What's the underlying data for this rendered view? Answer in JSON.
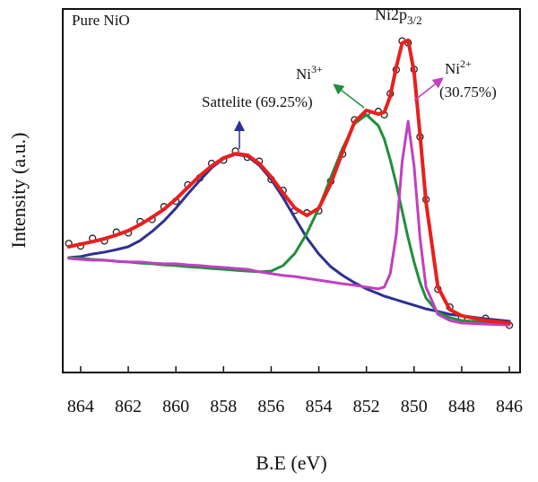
{
  "chart_data": {
    "type": "line",
    "x_label": "B.E (eV)",
    "y_label": "Intensity (a.u.)",
    "annotations": {
      "sample": "Pure NiO",
      "main_peak": {
        "text": "Ni2p",
        "sub": "3/2"
      },
      "ni3": {
        "text": "Ni",
        "sup": "3+"
      },
      "satellite": "Sattelite (69.25%)",
      "ni2": {
        "text": "Ni",
        "sup": "2+"
      },
      "ni2_share": "(30.75%)"
    },
    "x": [
      864.5,
      864,
      863.5,
      863,
      862.5,
      862,
      861.5,
      861,
      860.5,
      860,
      859.5,
      859,
      858.5,
      858,
      857.5,
      857,
      856.5,
      856,
      855.5,
      855,
      854.5,
      854,
      853.5,
      853,
      852.5,
      852,
      851.5,
      851.25,
      851,
      850.75,
      850.5,
      850.25,
      850,
      849.75,
      849.5,
      849,
      848.5,
      848,
      847,
      846
    ],
    "xlim": [
      864.75,
      845.55
    ],
    "xticks": [
      864,
      862,
      860,
      858,
      856,
      854,
      852,
      850,
      848,
      846
    ],
    "ylim": [
      0,
      100
    ],
    "series": [
      {
        "style": "markers",
        "color": "#222222",
        "values": [
          35.5,
          34.8,
          36.9,
          36.2,
          38.6,
          38.4,
          41.5,
          42.1,
          45.6,
          47.1,
          51.6,
          53.5,
          57.5,
          58.4,
          60.9,
          59.2,
          58.1,
          53.1,
          50.1,
          44.6,
          43.9,
          44.5,
          52.6,
          60.1,
          69.5,
          71.4,
          71.8,
          70.9,
          76.7,
          83.3,
          91.2,
          90.7,
          83.4,
          64.8,
          47.6,
          22.9,
          18.0,
          15.0,
          14.9,
          13.0
        ]
      },
      {
        "style": "line",
        "color": "#2e3192",
        "values": [
          31.6,
          31.9,
          32.6,
          33.1,
          33.8,
          34.6,
          36.3,
          38.8,
          41.7,
          45.2,
          49.1,
          52.8,
          56.3,
          58.8,
          60.0,
          59.5,
          57.0,
          53.1,
          48.1,
          42.5,
          37.0,
          32.6,
          29.1,
          26.7,
          24.7,
          23.0,
          21.7,
          21.0,
          20.5,
          20.0,
          19.5,
          19.0,
          18.5,
          18.0,
          17.5,
          16.8,
          16.0,
          15.6,
          14.8,
          14.1
        ]
      },
      {
        "style": "line",
        "color": "#1f8f3a",
        "values": [
          31.6,
          31.4,
          31.1,
          30.9,
          30.6,
          30.4,
          30.1,
          29.9,
          29.6,
          29.4,
          29.1,
          28.9,
          28.6,
          28.4,
          28.1,
          27.9,
          27.7,
          27.9,
          29.4,
          32.8,
          38.3,
          45.2,
          53.6,
          61.7,
          68.4,
          70.9,
          67.9,
          64.2,
          58.5,
          51.9,
          44.4,
          37.0,
          30.4,
          24.7,
          20.5,
          16.5,
          15.1,
          14.3,
          13.8,
          13.6
        ]
      },
      {
        "style": "line",
        "color": "#c040c0",
        "values": [
          31.4,
          31.1,
          30.9,
          30.9,
          30.6,
          30.4,
          30.4,
          30.1,
          29.9,
          29.9,
          29.6,
          29.4,
          29.1,
          28.9,
          28.6,
          28.4,
          27.7,
          27.2,
          26.7,
          26.4,
          25.9,
          25.4,
          24.9,
          24.4,
          24.0,
          23.5,
          23.0,
          23.5,
          27.2,
          37.8,
          58.0,
          69.1,
          56.8,
          37.0,
          23.5,
          16.0,
          14.3,
          13.6,
          13.3,
          13.1
        ]
      },
      {
        "style": "line",
        "color": "#e8201e",
        "values": [
          34.6,
          35.3,
          36.0,
          36.8,
          37.8,
          39.0,
          40.7,
          42.7,
          44.9,
          47.7,
          50.9,
          54.1,
          56.8,
          59.0,
          60.2,
          59.8,
          57.5,
          53.8,
          49.4,
          45.2,
          43.2,
          45.2,
          51.9,
          60.7,
          68.9,
          72.1,
          71.1,
          71.6,
          76.0,
          84.0,
          90.6,
          91.4,
          82.7,
          65.4,
          46.9,
          23.5,
          17.3,
          15.6,
          14.3,
          13.6
        ]
      }
    ]
  }
}
